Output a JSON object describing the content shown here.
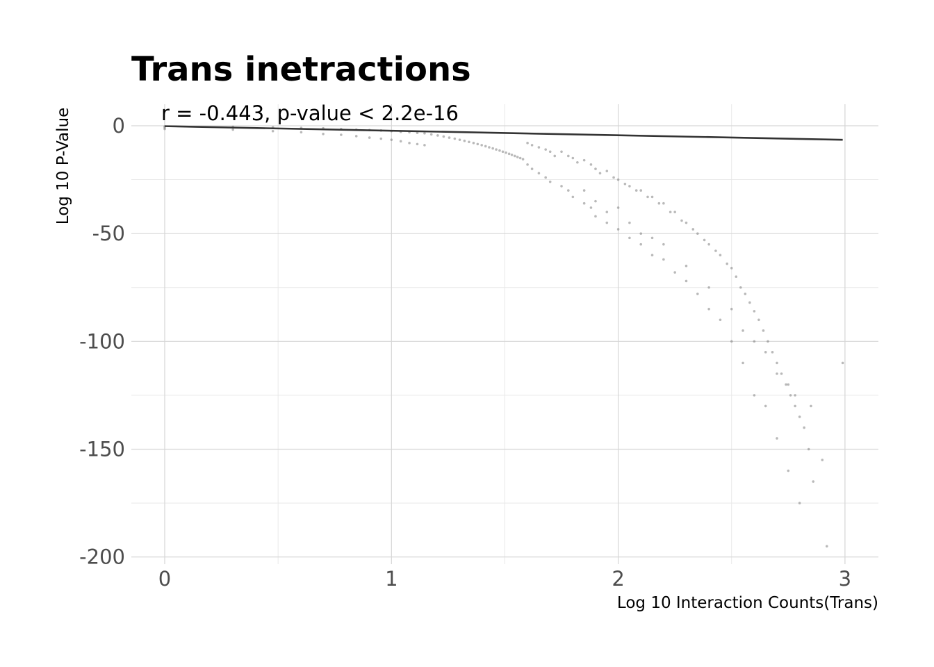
{
  "chart_data": {
    "type": "scatter",
    "title": "Trans inetractions",
    "annotation": "r = -0.443, p-value < 2.2e-16",
    "xlabel": "Log 10 Interaction Counts(Trans)",
    "ylabel": "Log 10 P-Value",
    "xlim": [
      -0.15,
      3.15
    ],
    "ylim": [
      -200,
      10
    ],
    "x_ticks": [
      0,
      1,
      2,
      3
    ],
    "x_tick_labels": [
      "0",
      "1",
      "2",
      "3"
    ],
    "y_ticks": [
      0,
      -50,
      -100,
      -150,
      -200
    ],
    "y_tick_labels": [
      "0",
      "-50",
      "-100",
      "-150",
      "-200"
    ],
    "grid": true,
    "point_color": "#808080",
    "line_color": "#333333",
    "series": [
      {
        "kind": "points",
        "x": [
          0,
          0,
          0,
          0.301,
          0.301,
          0.477,
          0.477,
          0.602,
          0.602,
          0.699,
          0.699,
          0.778,
          0.778,
          0.845,
          0.845,
          0.903,
          0.903,
          0.954,
          0.954,
          1.0,
          1.0,
          1.041,
          1.041,
          1.079,
          1.079,
          1.114,
          1.114,
          1.146,
          1.146,
          1.176,
          1.204,
          1.23,
          1.255,
          1.279,
          1.301,
          1.322,
          1.342,
          1.362,
          1.38,
          1.398,
          1.415,
          1.431,
          1.447,
          1.462,
          1.477,
          1.491,
          1.505,
          1.519,
          1.531,
          1.544,
          1.556,
          1.568,
          1.58,
          1.6,
          1.6,
          1.62,
          1.62,
          1.65,
          1.65,
          1.68,
          1.68,
          1.7,
          1.7,
          1.72,
          1.75,
          1.75,
          1.78,
          1.78,
          1.8,
          1.8,
          1.82,
          1.85,
          1.85,
          1.88,
          1.88,
          1.9,
          1.9,
          1.92,
          1.95,
          1.95,
          1.98,
          2.0,
          2.0,
          2.03,
          2.05,
          2.05,
          2.08,
          2.1,
          2.1,
          2.13,
          2.15,
          2.15,
          2.18,
          2.2,
          2.2,
          2.23,
          2.25,
          2.25,
          2.28,
          2.3,
          2.3,
          2.33,
          2.35,
          2.35,
          2.38,
          2.4,
          2.4,
          2.43,
          2.45,
          2.45,
          2.48,
          2.5,
          2.5,
          2.52,
          2.54,
          2.55,
          2.56,
          2.58,
          2.6,
          2.6,
          2.62,
          2.64,
          2.65,
          2.66,
          2.68,
          2.7,
          2.7,
          2.72,
          2.74,
          2.75,
          2.76,
          2.78,
          2.8,
          2.8,
          2.82,
          2.84,
          2.86,
          2.9,
          2.92,
          2.99,
          1.85,
          1.9,
          1.95,
          2.0,
          2.05,
          2.1,
          2.15,
          2.2,
          2.3,
          2.4,
          2.5,
          2.55,
          2.6,
          2.65,
          2.7,
          2.75,
          2.78,
          2.85
        ],
        "y": [
          -0.3,
          -0.8,
          -1.5,
          -0.5,
          -1.8,
          -0.7,
          -2.5,
          -1.0,
          -3.0,
          -1.2,
          -3.8,
          -1.5,
          -4.2,
          -1.8,
          -4.8,
          -2.0,
          -5.5,
          -2.2,
          -6.0,
          -2.5,
          -6.5,
          -2.8,
          -7.2,
          -3.0,
          -8.0,
          -3.3,
          -8.5,
          -3.5,
          -9.0,
          -4.0,
          -4.5,
          -5.0,
          -5.5,
          -6.0,
          -6.5,
          -7.0,
          -7.5,
          -8.0,
          -8.5,
          -9.0,
          -9.5,
          -10.0,
          -10.5,
          -11.0,
          -11.5,
          -12.0,
          -12.5,
          -13.0,
          -13.5,
          -14.0,
          -14.5,
          -15.0,
          -15.5,
          -8.0,
          -18.0,
          -9.0,
          -20.0,
          -10.0,
          -22.0,
          -11.0,
          -24.0,
          -12.0,
          -26.0,
          -14.0,
          -12.0,
          -28.0,
          -14.0,
          -30.0,
          -15.0,
          -33.0,
          -17.0,
          -16.0,
          -36.0,
          -18.0,
          -38.0,
          -20.0,
          -42.0,
          -22.0,
          -21.0,
          -45.0,
          -24.0,
          -25.0,
          -48.0,
          -27.0,
          -28.0,
          -52.0,
          -30.0,
          -30.0,
          -55.0,
          -33.0,
          -33.0,
          -60.0,
          -36.0,
          -36.0,
          -62.0,
          -40.0,
          -40.0,
          -68.0,
          -44.0,
          -45.0,
          -72.0,
          -48.0,
          -50.0,
          -78.0,
          -53.0,
          -55.0,
          -85.0,
          -58.0,
          -60.0,
          -90.0,
          -64.0,
          -66.0,
          -100.0,
          -70.0,
          -75.0,
          -110.0,
          -78.0,
          -82.0,
          -86.0,
          -125.0,
          -90.0,
          -95.0,
          -130.0,
          -100.0,
          -105.0,
          -110.0,
          -145.0,
          -115.0,
          -120.0,
          -160.0,
          -125.0,
          -130.0,
          -135.0,
          -175.0,
          -140.0,
          -150.0,
          -165.0,
          -155.0,
          -195.0,
          -110.0,
          -30.0,
          -35.0,
          -40.0,
          -38.0,
          -45.0,
          -50.0,
          -52.0,
          -55.0,
          -65.0,
          -75.0,
          -85.0,
          -95.0,
          -100.0,
          -105.0,
          -115.0,
          -120.0,
          -125.0,
          -130.0
        ]
      },
      {
        "kind": "regression-line",
        "x": [
          0,
          2.99
        ],
        "y": [
          -0.2,
          -6.5
        ]
      }
    ]
  }
}
